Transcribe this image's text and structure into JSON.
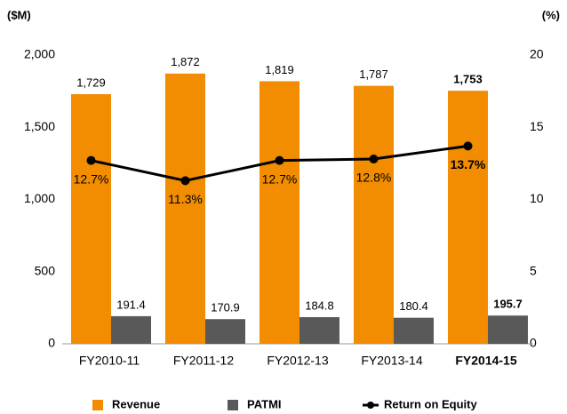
{
  "chart_data": {
    "type": "bar",
    "y_label": "($M)",
    "y2_label": "(%)",
    "categories": [
      "FY2010-11",
      "FY2011-12",
      "FY2012-13",
      "FY2013-14",
      "FY2014-15"
    ],
    "highlight_index": 4,
    "series": [
      {
        "name": "Revenue",
        "type": "bar",
        "color": "#f28c00",
        "values": [
          1729,
          1872,
          1819,
          1787,
          1753
        ],
        "value_labels": [
          "1,729",
          "1,872",
          "1,819",
          "1,787",
          "1,753"
        ]
      },
      {
        "name": "PATMI",
        "type": "bar",
        "color": "#595959",
        "values": [
          191.4,
          170.9,
          184.8,
          180.4,
          195.7
        ]
      },
      {
        "name": "Return on Equity",
        "type": "line",
        "axis": "y2",
        "color": "#000000",
        "values": [
          12.7,
          11.3,
          12.7,
          12.8,
          13.7
        ],
        "value_labels": [
          "12.7%",
          "11.3%",
          "12.7%",
          "12.8%",
          "13.7%"
        ]
      }
    ],
    "ylim": [
      0,
      2000
    ],
    "yticks": [
      0,
      500,
      {
        "value": 1000,
        "label": "1,000"
      },
      {
        "value": 1500,
        "label": "1,500"
      },
      {
        "value": 2000,
        "label": "2,000"
      }
    ],
    "y2lim": [
      0,
      20
    ],
    "y2ticks": [
      0,
      5,
      10,
      15,
      20
    ],
    "grid": false,
    "legend": "bottom"
  }
}
